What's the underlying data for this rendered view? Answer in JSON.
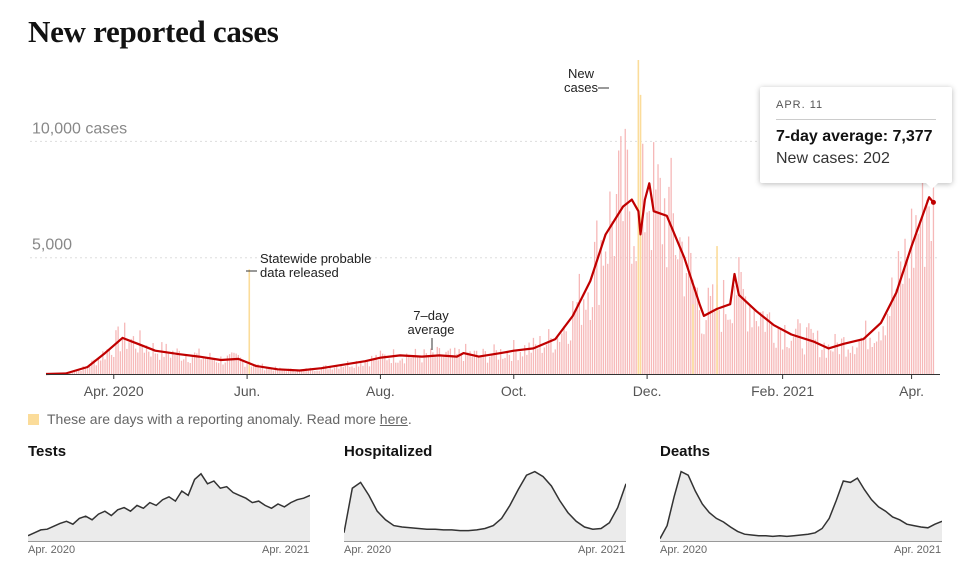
{
  "title": "New reported cases",
  "tooltip": {
    "date": "APR. 11",
    "avg_label": "7-day average: 7,377",
    "new_label": "New cases: 202"
  },
  "legend": {
    "text": "These are days with a reporting anomaly. Read more ",
    "link": "here",
    "end": ".",
    "anomaly_color": "#fbdc9a"
  },
  "colors": {
    "line": "#c00000",
    "bar": "#f6b8b8",
    "anomaly": "#fbdc9a",
    "small_line": "#333333",
    "small_fill": "#ebebeb"
  },
  "chart_data": [
    {
      "type": "bar",
      "title": "New reported cases",
      "y_unit_label": "10,000 cases",
      "y_ticks": [
        5000,
        10000
      ],
      "y_tick_labels": [
        "5,000",
        "10,000 cases"
      ],
      "ylim": [
        0,
        13500
      ],
      "x_range": [
        "2020-03-01",
        "2021-04-14"
      ],
      "x_ticks": [
        {
          "date": "2020-04-01",
          "label": "Apr. 2020"
        },
        {
          "date": "2020-06-01",
          "label": "Jun."
        },
        {
          "date": "2020-08-01",
          "label": "Aug."
        },
        {
          "date": "2020-10-01",
          "label": "Oct."
        },
        {
          "date": "2020-12-01",
          "label": "Dec."
        },
        {
          "date": "2021-02-01",
          "label": "Feb. 2021"
        },
        {
          "date": "2021-04-01",
          "label": "Apr."
        }
      ],
      "series": [
        {
          "name": "7-day average",
          "type": "line",
          "points": [
            [
              "2020-03-01",
              0
            ],
            [
              "2020-03-10",
              20
            ],
            [
              "2020-03-20",
              300
            ],
            [
              "2020-03-28",
              900
            ],
            [
              "2020-04-05",
              1550
            ],
            [
              "2020-04-12",
              1300
            ],
            [
              "2020-04-20",
              1000
            ],
            [
              "2020-05-01",
              850
            ],
            [
              "2020-05-10",
              750
            ],
            [
              "2020-05-20",
              600
            ],
            [
              "2020-05-28",
              650
            ],
            [
              "2020-06-05",
              350
            ],
            [
              "2020-06-15",
              200
            ],
            [
              "2020-06-25",
              150
            ],
            [
              "2020-07-05",
              250
            ],
            [
              "2020-07-15",
              400
            ],
            [
              "2020-07-25",
              550
            ],
            [
              "2020-08-01",
              700
            ],
            [
              "2020-08-10",
              800
            ],
            [
              "2020-08-20",
              750
            ],
            [
              "2020-08-28",
              800
            ],
            [
              "2020-09-05",
              750
            ],
            [
              "2020-09-08",
              900
            ],
            [
              "2020-09-15",
              750
            ],
            [
              "2020-09-25",
              900
            ],
            [
              "2020-10-01",
              1000
            ],
            [
              "2020-10-10",
              1100
            ],
            [
              "2020-10-20",
              1500
            ],
            [
              "2020-10-28",
              2500
            ],
            [
              "2020-11-05",
              4000
            ],
            [
              "2020-11-12",
              6000
            ],
            [
              "2020-11-20",
              7200
            ],
            [
              "2020-11-24",
              7500
            ],
            [
              "2020-11-27",
              7000
            ],
            [
              "2020-11-28",
              6000
            ],
            [
              "2020-11-30",
              7500
            ],
            [
              "2020-12-02",
              8200
            ],
            [
              "2020-12-04",
              7000
            ],
            [
              "2020-12-10",
              6800
            ],
            [
              "2020-12-18",
              5000
            ],
            [
              "2020-12-25",
              3000
            ],
            [
              "2020-12-27",
              2500
            ],
            [
              "2021-01-02",
              2800
            ],
            [
              "2021-01-08",
              3000
            ],
            [
              "2021-01-10",
              4300
            ],
            [
              "2021-01-12",
              3400
            ],
            [
              "2021-01-20",
              2700
            ],
            [
              "2021-01-28",
              2100
            ],
            [
              "2021-02-05",
              1700
            ],
            [
              "2021-02-15",
              1400
            ],
            [
              "2021-02-22",
              1100
            ],
            [
              "2021-03-01",
              1300
            ],
            [
              "2021-03-10",
              1500
            ],
            [
              "2021-03-18",
              2200
            ],
            [
              "2021-03-25",
              3500
            ],
            [
              "2021-04-01",
              5500
            ],
            [
              "2021-04-06",
              6800
            ],
            [
              "2021-04-09",
              7600
            ],
            [
              "2021-04-11",
              7377
            ]
          ]
        }
      ],
      "anomaly_days": [
        {
          "date": "2020-06-02",
          "value": 4500
        },
        {
          "date": "2020-11-27",
          "value": 13500
        },
        {
          "date": "2020-11-28",
          "value": 12000
        },
        {
          "date": "2020-12-22",
          "value": 3000
        },
        {
          "date": "2021-01-02",
          "value": 5500
        }
      ],
      "annotations": [
        {
          "text": [
            "Statewide probable",
            "data released"
          ]
        },
        {
          "text": [
            "7–day",
            "average"
          ]
        },
        {
          "text": [
            "New",
            "cases"
          ]
        }
      ]
    },
    {
      "type": "area",
      "title": "Tests",
      "x_labels": [
        "Apr. 2020",
        "Apr. 2021"
      ],
      "values": [
        0.06,
        0.1,
        0.14,
        0.15,
        0.19,
        0.23,
        0.26,
        0.22,
        0.3,
        0.33,
        0.28,
        0.36,
        0.4,
        0.34,
        0.42,
        0.45,
        0.4,
        0.48,
        0.44,
        0.52,
        0.48,
        0.56,
        0.6,
        0.54,
        0.68,
        0.62,
        0.84,
        0.92,
        0.78,
        0.82,
        0.72,
        0.74,
        0.66,
        0.62,
        0.58,
        0.52,
        0.54,
        0.48,
        0.44,
        0.5,
        0.46,
        0.52,
        0.56,
        0.58,
        0.62
      ]
    },
    {
      "type": "area",
      "title": "Hospitalized",
      "x_labels": [
        "Apr. 2020",
        "Apr. 2021"
      ],
      "values": [
        0.1,
        0.72,
        0.8,
        0.62,
        0.4,
        0.28,
        0.2,
        0.18,
        0.17,
        0.16,
        0.15,
        0.15,
        0.14,
        0.14,
        0.13,
        0.13,
        0.14,
        0.16,
        0.2,
        0.3,
        0.48,
        0.7,
        0.9,
        0.95,
        0.88,
        0.75,
        0.55,
        0.38,
        0.26,
        0.18,
        0.15,
        0.16,
        0.24,
        0.45,
        0.78
      ]
    },
    {
      "type": "area",
      "title": "Deaths",
      "x_labels": [
        "Apr. 2020",
        "Apr. 2021"
      ],
      "values": [
        0.02,
        0.2,
        0.6,
        0.95,
        0.9,
        0.68,
        0.5,
        0.38,
        0.3,
        0.25,
        0.18,
        0.12,
        0.08,
        0.07,
        0.06,
        0.06,
        0.05,
        0.06,
        0.05,
        0.06,
        0.07,
        0.08,
        0.1,
        0.16,
        0.3,
        0.55,
        0.82,
        0.8,
        0.86,
        0.7,
        0.56,
        0.46,
        0.4,
        0.32,
        0.28,
        0.22,
        0.2,
        0.18,
        0.17,
        0.22,
        0.26
      ]
    }
  ]
}
